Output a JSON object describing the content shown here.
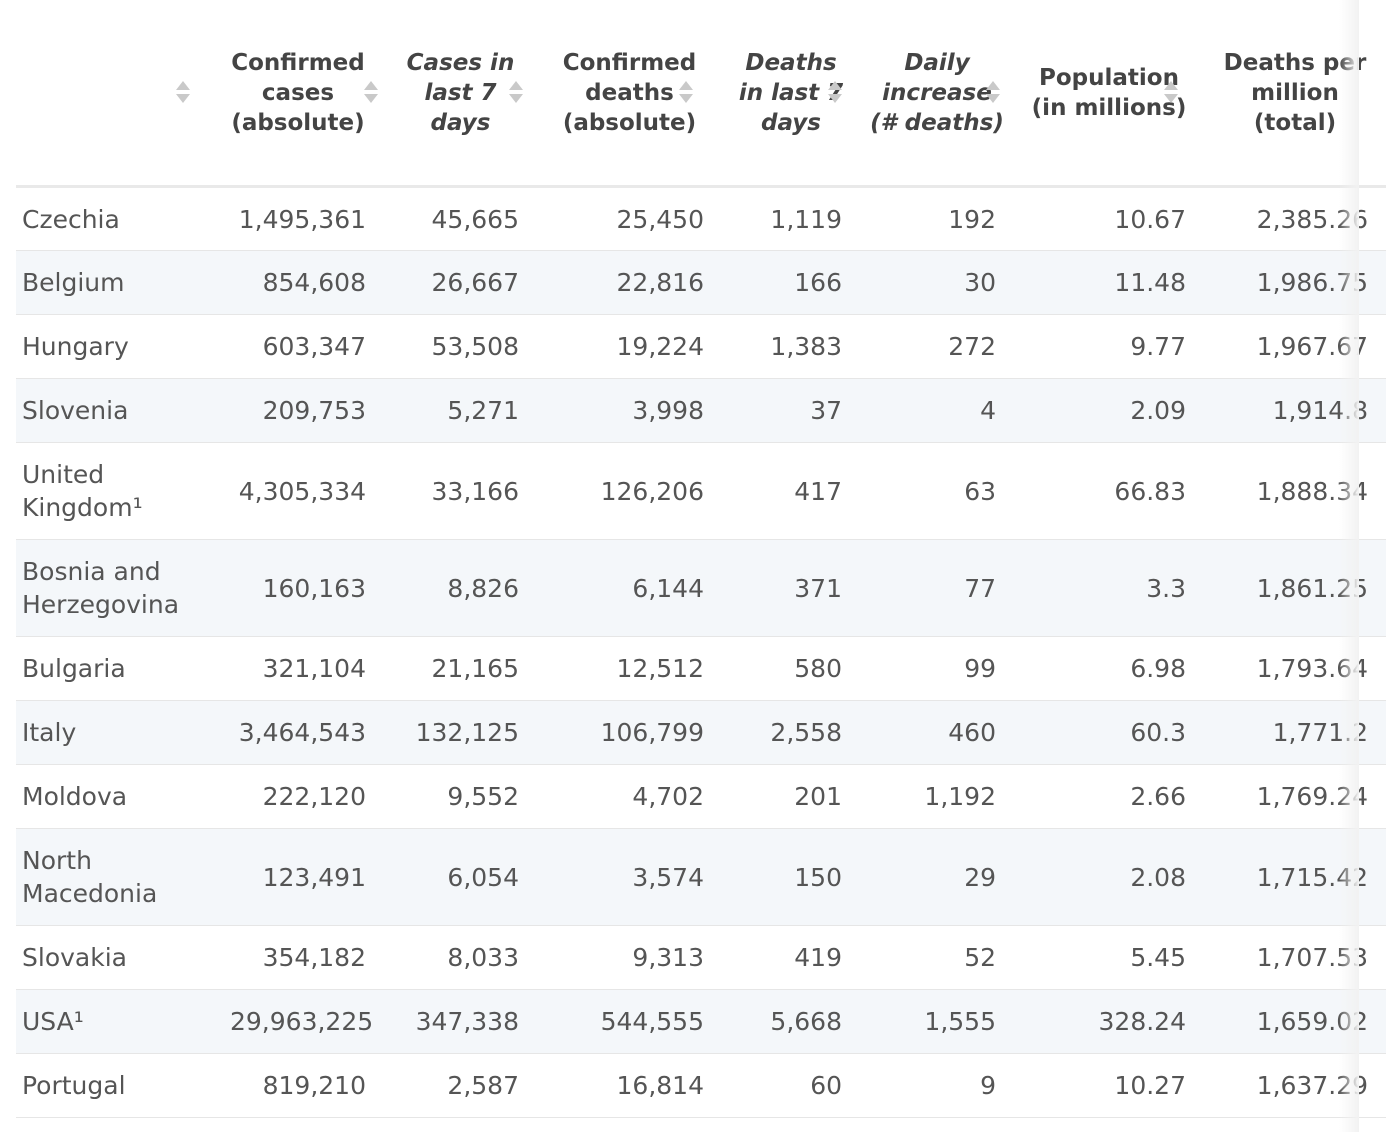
{
  "headers": [
    {
      "label": "",
      "italic": false
    },
    {
      "label": "Confirmed cases (absolute)",
      "italic": false
    },
    {
      "label": "Cases in last 7 days",
      "italic": true
    },
    {
      "label": "Confirmed deaths (absolute)",
      "italic": false
    },
    {
      "label": "Deaths in last 7 days",
      "italic": true
    },
    {
      "label": "Daily increase (# deaths)",
      "italic": true
    },
    {
      "label": "Population (in millions)",
      "italic": false
    },
    {
      "label": "Deaths per million (total)",
      "italic": false
    }
  ],
  "rows": [
    {
      "country": "Czechia",
      "cases": "1,495,361",
      "cases7": "45,665",
      "deaths": "25,450",
      "deaths7": "1,119",
      "daily": "192",
      "pop": "10.67",
      "dpm": "2,385.26"
    },
    {
      "country": "Belgium",
      "cases": "854,608",
      "cases7": "26,667",
      "deaths": "22,816",
      "deaths7": "166",
      "daily": "30",
      "pop": "11.48",
      "dpm": "1,986.75"
    },
    {
      "country": "Hungary",
      "cases": "603,347",
      "cases7": "53,508",
      "deaths": "19,224",
      "deaths7": "1,383",
      "daily": "272",
      "pop": "9.77",
      "dpm": "1,967.67"
    },
    {
      "country": "Slovenia",
      "cases": "209,753",
      "cases7": "5,271",
      "deaths": "3,998",
      "deaths7": "37",
      "daily": "4",
      "pop": "2.09",
      "dpm": "1,914.8"
    },
    {
      "country": "United Kingdom¹",
      "cases": "4,305,334",
      "cases7": "33,166",
      "deaths": "126,206",
      "deaths7": "417",
      "daily": "63",
      "pop": "66.83",
      "dpm": "1,888.34"
    },
    {
      "country": "Bosnia and Herzegovina",
      "cases": "160,163",
      "cases7": "8,826",
      "deaths": "6,144",
      "deaths7": "371",
      "daily": "77",
      "pop": "3.3",
      "dpm": "1,861.25"
    },
    {
      "country": "Bulgaria",
      "cases": "321,104",
      "cases7": "21,165",
      "deaths": "12,512",
      "deaths7": "580",
      "daily": "99",
      "pop": "6.98",
      "dpm": "1,793.64"
    },
    {
      "country": "Italy",
      "cases": "3,464,543",
      "cases7": "132,125",
      "deaths": "106,799",
      "deaths7": "2,558",
      "daily": "460",
      "pop": "60.3",
      "dpm": "1,771.2"
    },
    {
      "country": "Moldova",
      "cases": "222,120",
      "cases7": "9,552",
      "deaths": "4,702",
      "deaths7": "201",
      "daily": "1,192",
      "pop": "2.66",
      "dpm": "1,769.24"
    },
    {
      "country": "North Macedonia",
      "cases": "123,491",
      "cases7": "6,054",
      "deaths": "3,574",
      "deaths7": "150",
      "daily": "29",
      "pop": "2.08",
      "dpm": "1,715.42"
    },
    {
      "country": "Slovakia",
      "cases": "354,182",
      "cases7": "8,033",
      "deaths": "9,313",
      "deaths7": "419",
      "daily": "52",
      "pop": "5.45",
      "dpm": "1,707.53"
    },
    {
      "country": "USA¹",
      "cases": "29,963,225",
      "cases7": "347,338",
      "deaths": "544,555",
      "deaths7": "5,668",
      "daily": "1,555",
      "pop": "328.24",
      "dpm": "1,659.02"
    },
    {
      "country": "Portugal",
      "cases": "819,210",
      "cases7": "2,587",
      "deaths": "16,814",
      "deaths7": "60",
      "daily": "9",
      "pop": "10.27",
      "dpm": "1,637.29"
    }
  ]
}
